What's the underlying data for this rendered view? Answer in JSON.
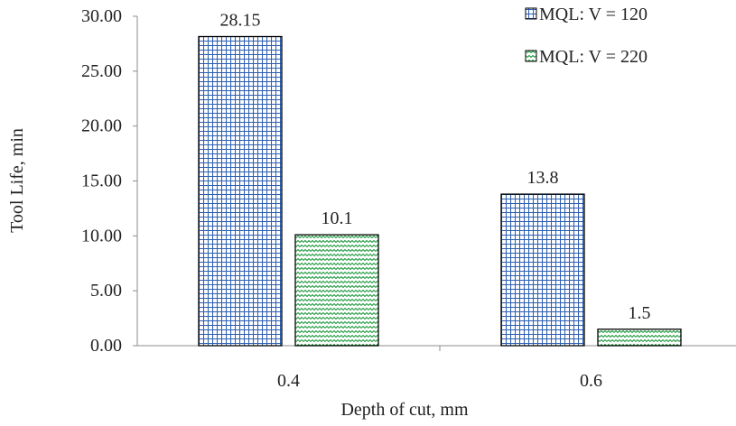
{
  "chart_data": {
    "type": "bar",
    "categories": [
      "0.4",
      "0.6"
    ],
    "series": [
      {
        "name": "MQL: V = 120",
        "values": [
          28.15,
          13.8
        ],
        "value_labels": [
          "28.15",
          "13.8"
        ],
        "pattern": "grid",
        "color": "#2e5fb0"
      },
      {
        "name": "MQL: V = 220",
        "values": [
          10.1,
          1.5
        ],
        "value_labels": [
          "10.1",
          "1.5"
        ],
        "pattern": "wave",
        "color": "#1c9a3c"
      }
    ],
    "xlabel": "Depth of cut, mm",
    "ylabel": "Tool Life, min",
    "ylim": [
      0,
      30
    ],
    "yticks": [
      "0.00",
      "5.00",
      "10.00",
      "15.00",
      "20.00",
      "25.00",
      "30.00"
    ],
    "grid": false,
    "legend_position": "top-right"
  }
}
